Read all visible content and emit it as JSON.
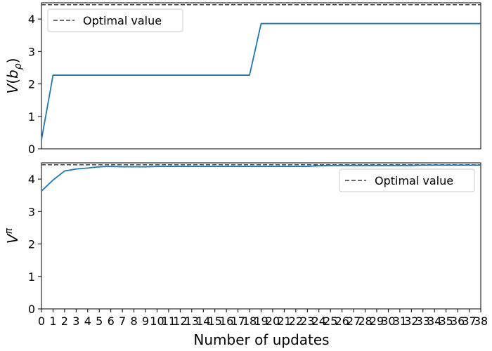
{
  "chart_data": [
    {
      "type": "line",
      "ylabel": "V(b_ρ)",
      "ylim": [
        0,
        4.5
      ],
      "yticks": [
        0,
        1,
        2,
        3,
        4
      ],
      "x": [
        0,
        1,
        2,
        3,
        4,
        5,
        6,
        7,
        8,
        9,
        10,
        11,
        12,
        13,
        14,
        15,
        16,
        17,
        18,
        19,
        20,
        21,
        22,
        23,
        24,
        25,
        26,
        27,
        28,
        29,
        30,
        31,
        32,
        33,
        34,
        35,
        36,
        37,
        38
      ],
      "series": [
        {
          "values": [
            0.28,
            2.27,
            2.27,
            2.27,
            2.27,
            2.27,
            2.27,
            2.27,
            2.27,
            2.27,
            2.27,
            2.27,
            2.27,
            2.27,
            2.27,
            2.27,
            2.27,
            2.27,
            2.27,
            3.86,
            3.86,
            3.86,
            3.86,
            3.86,
            3.86,
            3.86,
            3.86,
            3.86,
            3.86,
            3.86,
            3.86,
            3.86,
            3.86,
            3.86,
            3.86,
            3.86,
            3.86,
            3.86,
            3.86
          ],
          "color": "#1f77b4"
        }
      ],
      "optimal_value": 4.44,
      "legend": {
        "label": "Optimal value",
        "placement": "upper left"
      },
      "show_xticks": false
    },
    {
      "type": "line",
      "ylabel": "V^π",
      "xlabel": "Number of updates",
      "ylim": [
        0,
        4.5
      ],
      "yticks": [
        0,
        1,
        2,
        3,
        4
      ],
      "x": [
        0,
        1,
        2,
        3,
        4,
        5,
        6,
        7,
        8,
        9,
        10,
        11,
        12,
        13,
        14,
        15,
        16,
        17,
        18,
        19,
        20,
        21,
        22,
        23,
        24,
        25,
        26,
        27,
        28,
        29,
        30,
        31,
        32,
        33,
        34,
        35,
        36,
        37,
        38
      ],
      "xtick_labels": [
        "0",
        "1",
        "2",
        "3",
        "4",
        "5",
        "6",
        "7",
        "8",
        "9",
        "10",
        "11",
        "12",
        "13",
        "14",
        "15",
        "16",
        "17",
        "18",
        "19",
        "20",
        "21",
        "22",
        "23",
        "24",
        "25",
        "26",
        "27",
        "28",
        "29",
        "30",
        "31",
        "32",
        "33",
        "34",
        "35",
        "36",
        "37",
        "38"
      ],
      "series": [
        {
          "values": [
            3.63,
            3.97,
            4.25,
            4.31,
            4.34,
            4.38,
            4.39,
            4.38,
            4.38,
            4.38,
            4.39,
            4.39,
            4.39,
            4.39,
            4.39,
            4.39,
            4.39,
            4.39,
            4.39,
            4.39,
            4.39,
            4.39,
            4.39,
            4.39,
            4.41,
            4.42,
            4.42,
            4.42,
            4.42,
            4.42,
            4.42,
            4.42,
            4.42,
            4.43,
            4.43,
            4.43,
            4.43,
            4.43,
            4.43
          ],
          "color": "#1f77b4"
        }
      ],
      "optimal_value": 4.44,
      "legend": {
        "label": "Optimal value",
        "placement": "upper right"
      },
      "show_xticks": true
    }
  ]
}
